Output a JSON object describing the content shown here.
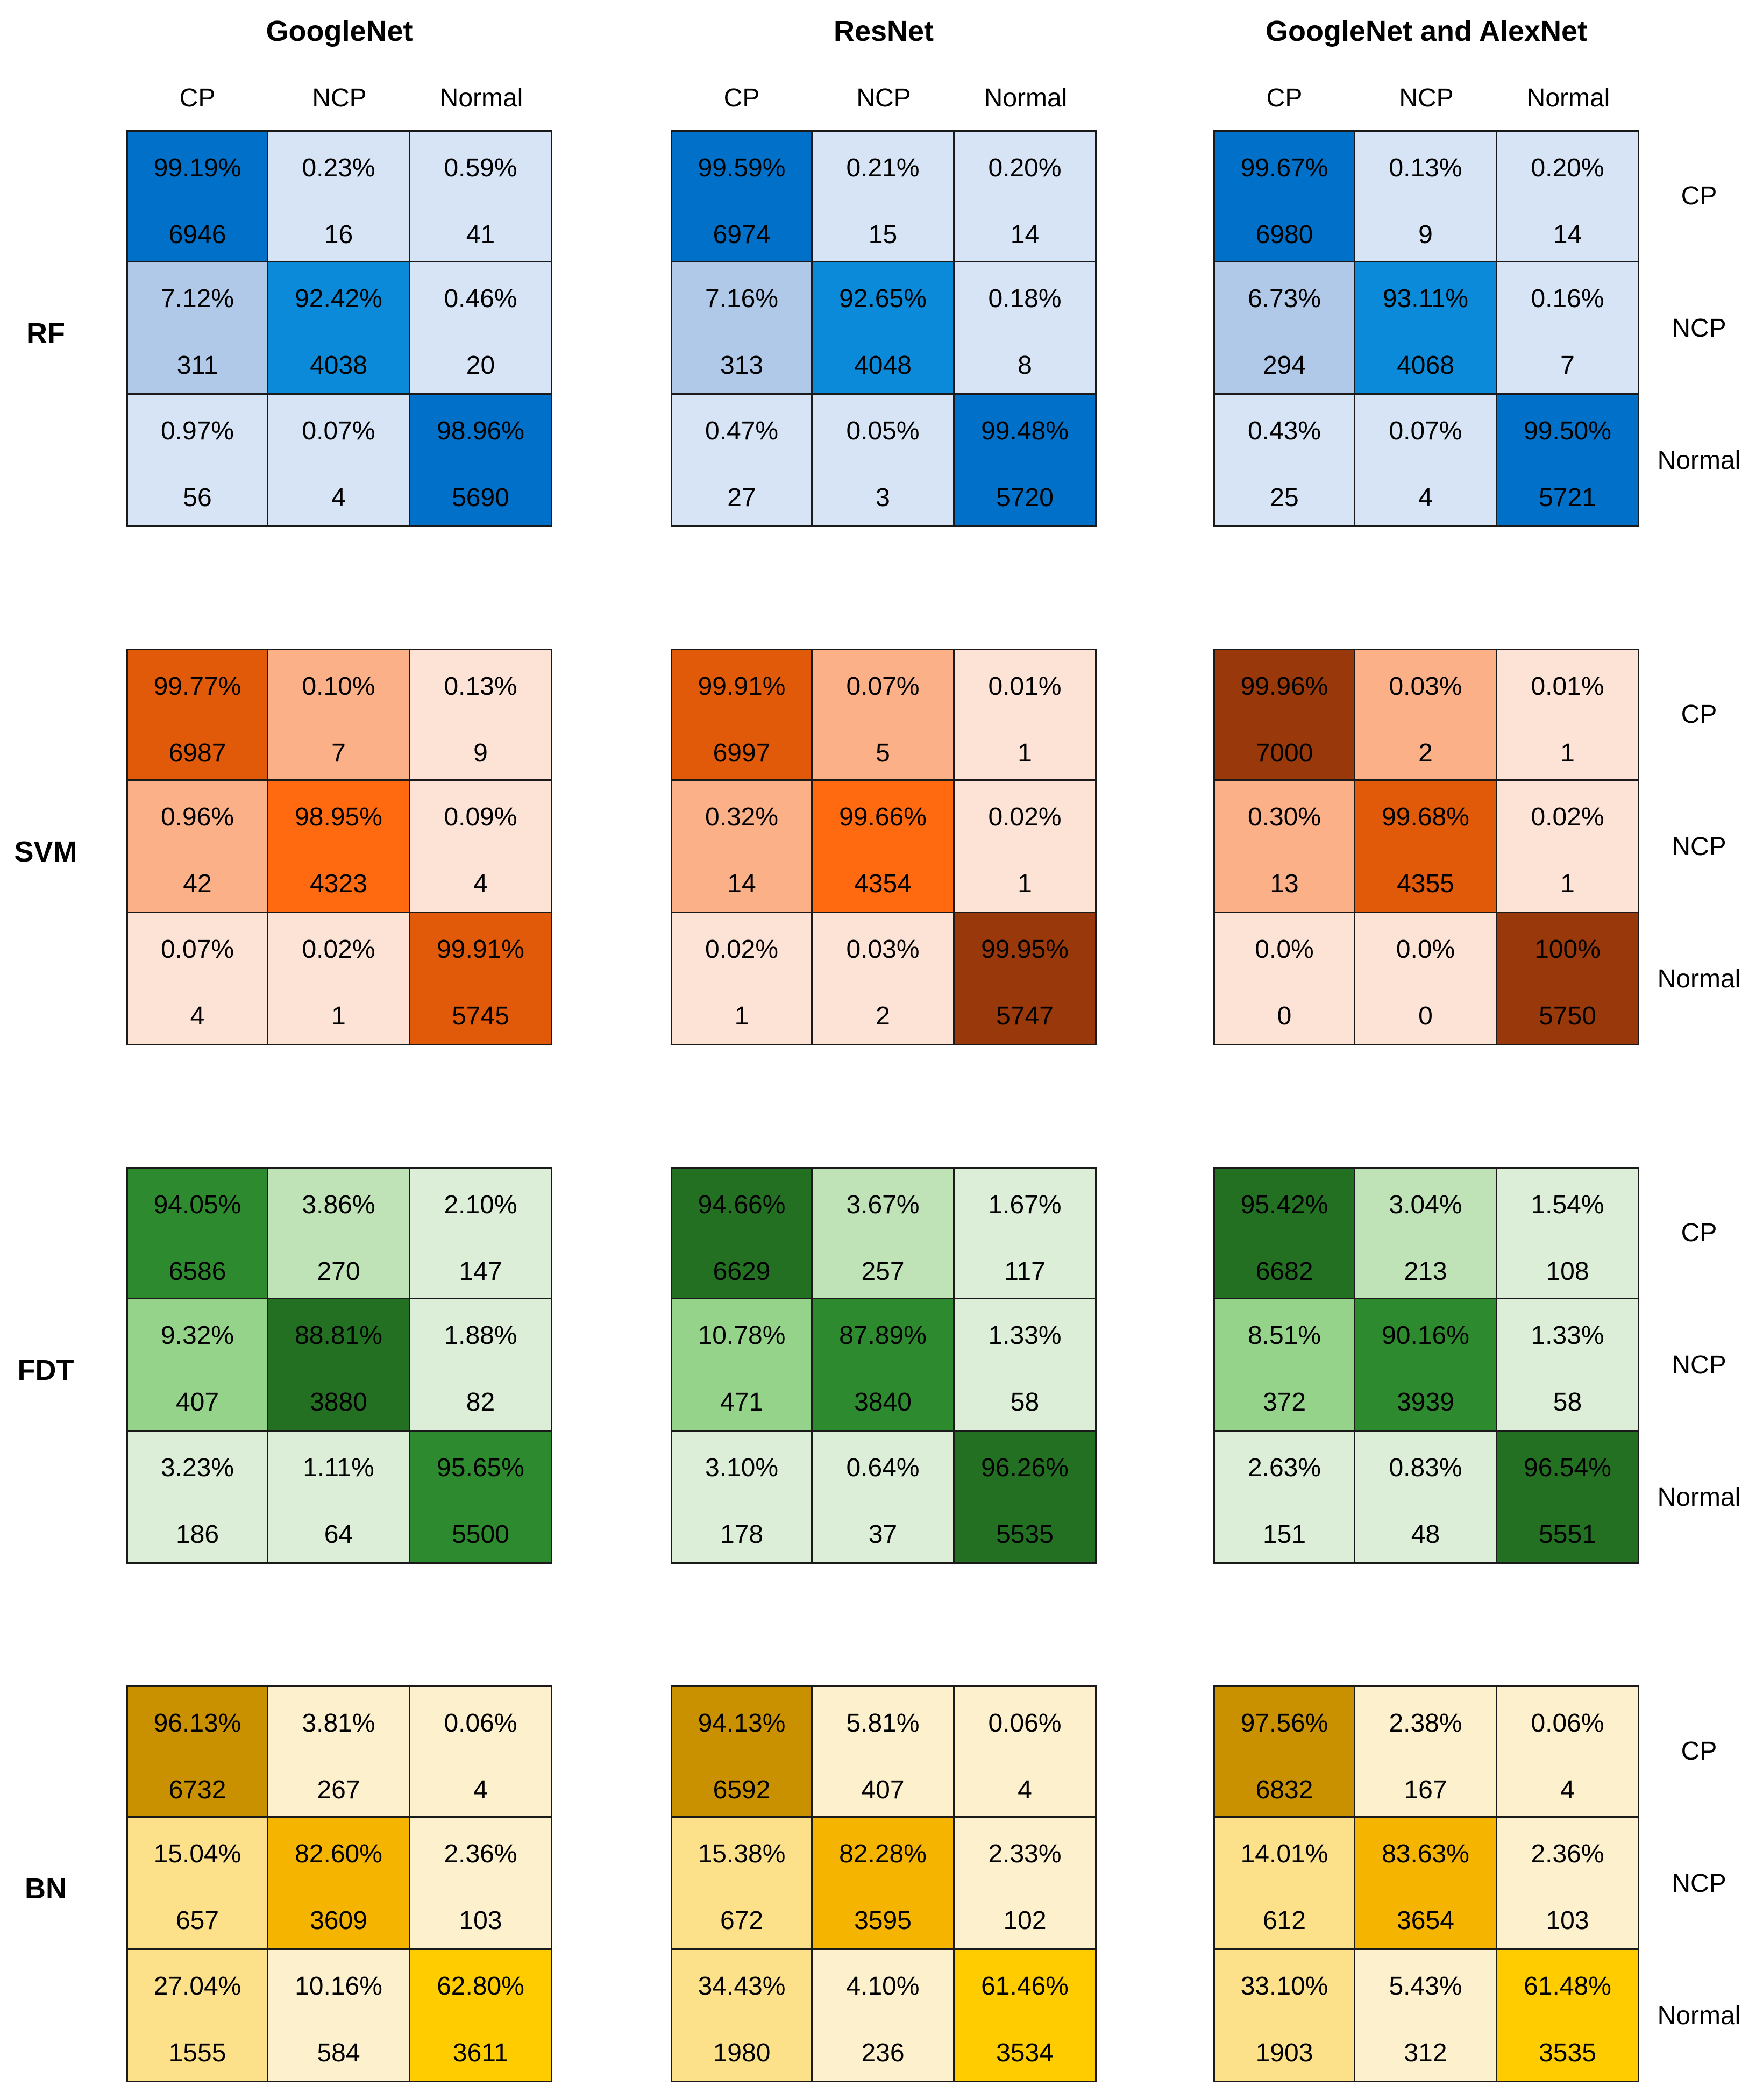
{
  "chart_data": {
    "type": "heatmap",
    "title": "",
    "column_groups": [
      "GoogleNet",
      "ResNet",
      "GoogleNet and AlexNet"
    ],
    "classifiers": [
      "RF",
      "SVM",
      "FDT",
      "BN"
    ],
    "predicted_labels": [
      "CP",
      "NCP",
      "Normal"
    ],
    "actual_labels": [
      "CP",
      "NCP",
      "Normal"
    ],
    "colors": {
      "RF": [
        "#d6e4f5",
        "#b0c9e8",
        "#0a8ad8",
        "#0070c8"
      ],
      "SVM": [
        "#fde3d6",
        "#fbb088",
        "#ff6a10",
        "#e05a0a",
        "#99380a"
      ],
      "FDT": [
        "#ddeed8",
        "#bfe3b6",
        "#96d38a",
        "#2e8a2e",
        "#237023"
      ],
      "BN": [
        "#fdf0cc",
        "#fde08a",
        "#f5b400",
        "#ffcc00",
        "#c99000"
      ]
    },
    "matrices": [
      {
        "classifier": "RF",
        "model": "GoogleNet",
        "pct": [
          [
            "99.19%",
            "0.23%",
            "0.59%"
          ],
          [
            "7.12%",
            "92.42%",
            "0.46%"
          ],
          [
            "0.97%",
            "0.07%",
            "98.96%"
          ]
        ],
        "count": [
          [
            "6946",
            "16",
            "41"
          ],
          [
            "311",
            "4038",
            "20"
          ],
          [
            "56",
            "4",
            "5690"
          ]
        ],
        "shade": [
          [
            3,
            0,
            0
          ],
          [
            1,
            2,
            0
          ],
          [
            0,
            0,
            3
          ]
        ]
      },
      {
        "classifier": "RF",
        "model": "ResNet",
        "pct": [
          [
            "99.59%",
            "0.21%",
            "0.20%"
          ],
          [
            "7.16%",
            "92.65%",
            "0.18%"
          ],
          [
            "0.47%",
            "0.05%",
            "99.48%"
          ]
        ],
        "count": [
          [
            "6974",
            "15",
            "14"
          ],
          [
            "313",
            "4048",
            "8"
          ],
          [
            "27",
            "3",
            "5720"
          ]
        ],
        "shade": [
          [
            3,
            0,
            0
          ],
          [
            1,
            2,
            0
          ],
          [
            0,
            0,
            3
          ]
        ]
      },
      {
        "classifier": "RF",
        "model": "GoogleNet and AlexNet",
        "pct": [
          [
            "99.67%",
            "0.13%",
            "0.20%"
          ],
          [
            "6.73%",
            "93.11%",
            "0.16%"
          ],
          [
            "0.43%",
            "0.07%",
            "99.50%"
          ]
        ],
        "count": [
          [
            "6980",
            "9",
            "14"
          ],
          [
            "294",
            "4068",
            "7"
          ],
          [
            "25",
            "4",
            "5721"
          ]
        ],
        "shade": [
          [
            3,
            0,
            0
          ],
          [
            1,
            2,
            0
          ],
          [
            0,
            0,
            3
          ]
        ]
      },
      {
        "classifier": "SVM",
        "model": "GoogleNet",
        "pct": [
          [
            "99.77%",
            "0.10%",
            "0.13%"
          ],
          [
            "0.96%",
            "98.95%",
            "0.09%"
          ],
          [
            "0.07%",
            "0.02%",
            "99.91%"
          ]
        ],
        "count": [
          [
            "6987",
            "7",
            "9"
          ],
          [
            "42",
            "4323",
            "4"
          ],
          [
            "4",
            "1",
            "5745"
          ]
        ],
        "shade": [
          [
            3,
            1,
            0
          ],
          [
            1,
            2,
            0
          ],
          [
            0,
            0,
            3
          ]
        ]
      },
      {
        "classifier": "SVM",
        "model": "ResNet",
        "pct": [
          [
            "99.91%",
            "0.07%",
            "0.01%"
          ],
          [
            "0.32%",
            "99.66%",
            "0.02%"
          ],
          [
            "0.02%",
            "0.03%",
            "99.95%"
          ]
        ],
        "count": [
          [
            "6997",
            "5",
            "1"
          ],
          [
            "14",
            "4354",
            "1"
          ],
          [
            "1",
            "2",
            "5747"
          ]
        ],
        "shade": [
          [
            3,
            1,
            0
          ],
          [
            1,
            2,
            0
          ],
          [
            0,
            0,
            4
          ]
        ]
      },
      {
        "classifier": "SVM",
        "model": "GoogleNet and AlexNet",
        "pct": [
          [
            "99.96%",
            "0.03%",
            "0.01%"
          ],
          [
            "0.30%",
            "99.68%",
            "0.02%"
          ],
          [
            "0.0%",
            "0.0%",
            "100%"
          ]
        ],
        "count": [
          [
            "7000",
            "2",
            "1"
          ],
          [
            "13",
            "4355",
            "1"
          ],
          [
            "0",
            "0",
            "5750"
          ]
        ],
        "shade": [
          [
            4,
            1,
            0
          ],
          [
            1,
            3,
            0
          ],
          [
            0,
            0,
            4
          ]
        ]
      },
      {
        "classifier": "FDT",
        "model": "GoogleNet",
        "pct": [
          [
            "94.05%",
            "3.86%",
            "2.10%"
          ],
          [
            "9.32%",
            "88.81%",
            "1.88%"
          ],
          [
            "3.23%",
            "1.11%",
            "95.65%"
          ]
        ],
        "count": [
          [
            "6586",
            "270",
            "147"
          ],
          [
            "407",
            "3880",
            "82"
          ],
          [
            "186",
            "64",
            "5500"
          ]
        ],
        "shade": [
          [
            3,
            1,
            0
          ],
          [
            2,
            4,
            0
          ],
          [
            0,
            0,
            3
          ]
        ]
      },
      {
        "classifier": "FDT",
        "model": "ResNet",
        "pct": [
          [
            "94.66%",
            "3.67%",
            "1.67%"
          ],
          [
            "10.78%",
            "87.89%",
            "1.33%"
          ],
          [
            "3.10%",
            "0.64%",
            "96.26%"
          ]
        ],
        "count": [
          [
            "6629",
            "257",
            "117"
          ],
          [
            "471",
            "3840",
            "58"
          ],
          [
            "178",
            "37",
            "5535"
          ]
        ],
        "shade": [
          [
            4,
            1,
            0
          ],
          [
            2,
            3,
            0
          ],
          [
            0,
            0,
            4
          ]
        ]
      },
      {
        "classifier": "FDT",
        "model": "GoogleNet and AlexNet",
        "pct": [
          [
            "95.42%",
            "3.04%",
            "1.54%"
          ],
          [
            "8.51%",
            "90.16%",
            "1.33%"
          ],
          [
            "2.63%",
            "0.83%",
            "96.54%"
          ]
        ],
        "count": [
          [
            "6682",
            "213",
            "108"
          ],
          [
            "372",
            "3939",
            "58"
          ],
          [
            "151",
            "48",
            "5551"
          ]
        ],
        "shade": [
          [
            4,
            1,
            0
          ],
          [
            2,
            3,
            0
          ],
          [
            0,
            0,
            4
          ]
        ]
      },
      {
        "classifier": "BN",
        "model": "GoogleNet",
        "pct": [
          [
            "96.13%",
            "3.81%",
            "0.06%"
          ],
          [
            "15.04%",
            "82.60%",
            "2.36%"
          ],
          [
            "27.04%",
            "10.16%",
            "62.80%"
          ]
        ],
        "count": [
          [
            "6732",
            "267",
            "4"
          ],
          [
            "657",
            "3609",
            "103"
          ],
          [
            "1555",
            "584",
            "3611"
          ]
        ],
        "shade": [
          [
            4,
            0,
            0
          ],
          [
            1,
            2,
            0
          ],
          [
            1,
            0,
            3
          ]
        ]
      },
      {
        "classifier": "BN",
        "model": "ResNet",
        "pct": [
          [
            "94.13%",
            "5.81%",
            "0.06%"
          ],
          [
            "15.38%",
            "82.28%",
            "2.33%"
          ],
          [
            "34.43%",
            "4.10%",
            "61.46%"
          ]
        ],
        "count": [
          [
            "6592",
            "407",
            "4"
          ],
          [
            "672",
            "3595",
            "102"
          ],
          [
            "1980",
            "236",
            "3534"
          ]
        ],
        "shade": [
          [
            4,
            0,
            0
          ],
          [
            1,
            2,
            0
          ],
          [
            1,
            0,
            3
          ]
        ]
      },
      {
        "classifier": "BN",
        "model": "GoogleNet and AlexNet",
        "pct": [
          [
            "97.56%",
            "2.38%",
            "0.06%"
          ],
          [
            "14.01%",
            "83.63%",
            "2.36%"
          ],
          [
            "33.10%",
            "5.43%",
            "61.48%"
          ]
        ],
        "count": [
          [
            "6832",
            "167",
            "4"
          ],
          [
            "612",
            "3654",
            "103"
          ],
          [
            "1903",
            "312",
            "3535"
          ]
        ],
        "shade": [
          [
            4,
            0,
            0
          ],
          [
            1,
            2,
            0
          ],
          [
            1,
            0,
            3
          ]
        ]
      }
    ]
  }
}
